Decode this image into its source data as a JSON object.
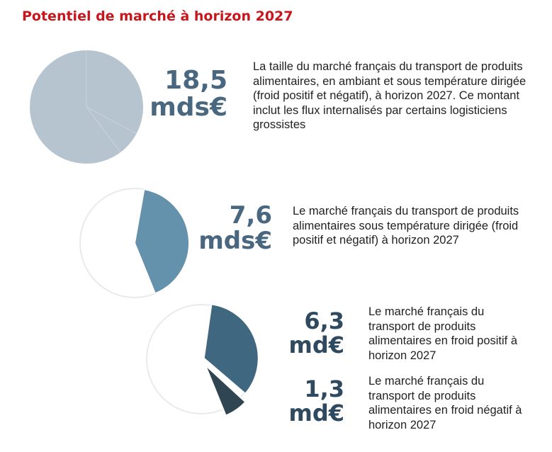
{
  "title": "Potentiel de marché à horizon 2027",
  "colors": {
    "title": "#c8161d",
    "value_light": "#4a6780",
    "value_dark": "#2f4a5e",
    "pie_total": "#b5c4cf",
    "pie_ref": "#ffffff",
    "pie_ref_border": "#e8eaec",
    "pie_temp": "#6491ac",
    "pie_froid_pos": "#3f6780",
    "pie_froid_neg": "#2f4552"
  },
  "chart_data": [
    {
      "type": "pie",
      "values": [
        18.5
      ],
      "labels": [
        "18,5 mds€"
      ]
    },
    {
      "type": "pie",
      "values": [
        7.6,
        10.9
      ],
      "labels": [
        "7,6 mds€",
        ""
      ]
    },
    {
      "type": "pie",
      "values": [
        6.3,
        1.3,
        10.9
      ],
      "labels": [
        "6,3 md€",
        "1,3 md€",
        ""
      ]
    }
  ],
  "items": [
    {
      "value_line1": "18,5",
      "value_line2": "mds€",
      "description": "La taille du marché français du transport de produits alimentaires, en ambiant et sous température dirigée (froid positif et négatif), à horizon 2027. Ce montant inclut les flux internalisés par certains logisticiens grossistes"
    },
    {
      "value_line1": "7,6",
      "value_line2": "mds€",
      "description": "Le marché français du transport de produits alimentaires sous température dirigée (froid positif et négatif) à horizon 2027"
    },
    {
      "value_line1": "6,3",
      "value_line2": "md€",
      "description": "Le marché français du transport de produits alimentaires en froid positif à horizon 2027"
    },
    {
      "value_line1": "1,3",
      "value_line2": "md€",
      "description": "Le marché français du transport de produits alimentaires en froid négatif à horizon 2027"
    }
  ]
}
